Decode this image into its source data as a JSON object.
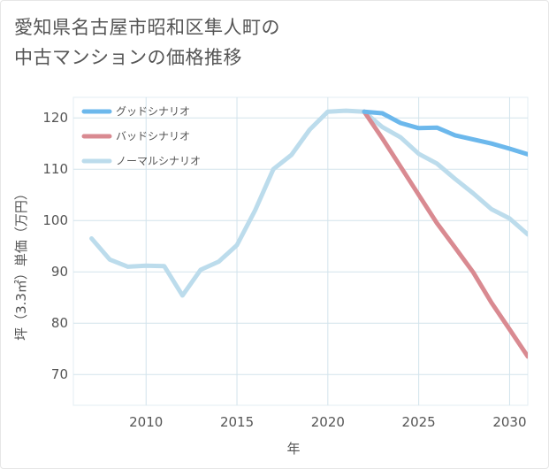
{
  "title_line1": "愛知県名古屋市昭和区隼人町の",
  "title_line2": "中古マンションの価格推移",
  "chart_data": {
    "type": "line",
    "xlabel": "年",
    "ylabel": "坪（3.3㎡）単価（万円）",
    "xlim": [
      2006,
      2031
    ],
    "ylim": [
      64,
      124
    ],
    "x_ticks": [
      2010,
      2015,
      2020,
      2025,
      2030
    ],
    "y_ticks": [
      70,
      80,
      90,
      100,
      110,
      120
    ],
    "grid": true,
    "legend_position": "top-left",
    "series": [
      {
        "name": "グッドシナリオ",
        "color": "#6cb8ec",
        "x": [
          2022,
          2023,
          2024,
          2025,
          2026,
          2027,
          2028,
          2029,
          2030,
          2031
        ],
        "y": [
          121.2,
          120.9,
          119.0,
          118.0,
          118.1,
          116.6,
          115.8,
          115.0,
          114.0,
          112.9
        ]
      },
      {
        "name": "バッドシナリオ",
        "color": "#d98a91",
        "x": [
          2022,
          2023,
          2024,
          2025,
          2026,
          2027,
          2028,
          2029,
          2030,
          2031
        ],
        "y": [
          121.2,
          116.0,
          110.5,
          105.0,
          99.5,
          94.7,
          89.9,
          84.0,
          78.8,
          73.5
        ]
      },
      {
        "name": "ノーマルシナリオ",
        "color": "#bcdcec",
        "x": [
          2007,
          2008,
          2009,
          2010,
          2011,
          2012,
          2013,
          2014,
          2015,
          2016,
          2017,
          2018,
          2019,
          2020,
          2021,
          2022,
          2023,
          2024,
          2025,
          2026,
          2027,
          2028,
          2029,
          2030,
          2031
        ],
        "y": [
          96.5,
          92.4,
          91.0,
          91.2,
          91.1,
          85.4,
          90.4,
          92.0,
          95.2,
          102.0,
          110.0,
          112.8,
          117.7,
          121.2,
          121.4,
          121.2,
          118.2,
          116.2,
          113.0,
          111.1,
          108.1,
          105.3,
          102.2,
          100.4,
          97.3
        ]
      }
    ]
  }
}
